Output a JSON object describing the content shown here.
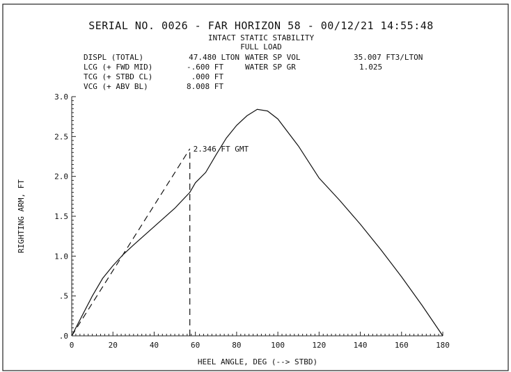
{
  "header": {
    "title": "SERIAL NO. 0026 - FAR HORIZON 58 - 00/12/21 14:55:48",
    "subtitle1": "INTACT STATIC STABILITY",
    "subtitle2": "FULL LOAD"
  },
  "info": {
    "displ_label": "DISPL (TOTAL)",
    "displ_value": "47.480 LTON",
    "lcg_label": "LCG (+ FWD MID)",
    "lcg_value": "-.600 FT",
    "tcg_label": "TCG (+ STBD CL)",
    "tcg_value": ".000 FT",
    "vcg_label": "VCG (+ ABV BL)",
    "vcg_value": "8.008 FT",
    "wsv_label": "WATER SP VOL",
    "wsv_value": "35.007 FT3/LTON",
    "wsg_label": "WATER SP GR",
    "wsg_value": "1.025"
  },
  "chart_data": {
    "type": "line",
    "xlabel": "HEEL ANGLE, DEG (--> STBD)",
    "ylabel": "RIGHTING ARM, FT",
    "xlim": [
      0,
      180
    ],
    "ylim": [
      0,
      3.0
    ],
    "x_ticks": [
      "0",
      "20",
      "40",
      "60",
      "80",
      "100",
      "120",
      "140",
      "160",
      "180"
    ],
    "y_ticks": [
      ".0",
      ".5",
      "1.0",
      "1.5",
      "2.0",
      "2.5",
      "3.0"
    ],
    "series": [
      {
        "style": "solid",
        "x": [
          0,
          5,
          10,
          15,
          20,
          25,
          30,
          40,
          50,
          57.3,
          60,
          65,
          70,
          75,
          80,
          85,
          90,
          95,
          100,
          110,
          120,
          130,
          140,
          150,
          160,
          170,
          180
        ],
        "y": [
          0,
          0.25,
          0.5,
          0.72,
          0.88,
          1.02,
          1.14,
          1.37,
          1.6,
          1.8,
          1.92,
          2.05,
          2.27,
          2.48,
          2.64,
          2.76,
          2.84,
          2.82,
          2.72,
          2.38,
          1.98,
          1.7,
          1.4,
          1.08,
          0.74,
          0.38,
          0.0
        ]
      },
      {
        "style": "dashed",
        "x": [
          0,
          57.3
        ],
        "y": [
          0,
          2.346
        ]
      }
    ],
    "annotations": [
      {
        "text": "2.346 FT GMT",
        "x": 57.3,
        "y": 2.346
      }
    ],
    "vertical_marker": {
      "x": 57.3,
      "y_from": 0,
      "y_to": 2.346,
      "style": "dashed"
    },
    "colors": {
      "line": "#111111",
      "frame": "#222222",
      "background": "#ffffff"
    }
  }
}
